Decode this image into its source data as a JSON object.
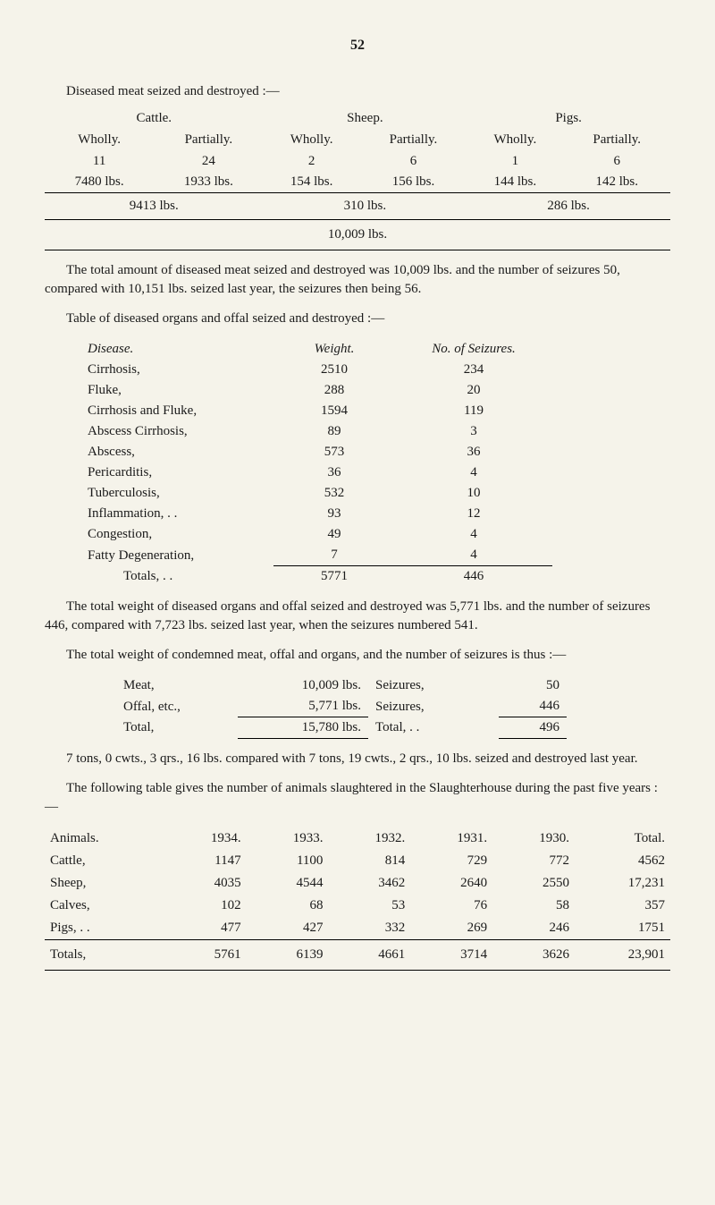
{
  "page_number": "52",
  "meat_section": {
    "intro": "Diseased meat seized and destroyed :—",
    "categories": [
      "Cattle.",
      "Sheep.",
      "Pigs."
    ],
    "headers": [
      "Wholly.",
      "Partially.",
      "Wholly.",
      "Partially.",
      "Wholly.",
      "Partially."
    ],
    "counts": [
      "11",
      "24",
      "2",
      "6",
      "1",
      "6"
    ],
    "weights": [
      "7480 lbs.",
      "1933 lbs.",
      "154 lbs.",
      "156 lbs.",
      "144 lbs.",
      "142 lbs."
    ],
    "subtotals": [
      "9413 lbs.",
      "310 lbs.",
      "286 lbs."
    ],
    "grand_total": "10,009 lbs."
  },
  "para1": "The total amount of diseased meat seized and destroyed was 10,009 lbs. and the number of seizures 50, compared with 10,151 lbs. seized last year, the seizures then being 56.",
  "organs_section": {
    "intro": "Table of diseased organs and offal seized and destroyed :—",
    "headers": {
      "disease": "Disease.",
      "weight": "Weight.",
      "seizures": "No. of Seizures."
    },
    "rows": [
      {
        "disease": "Cirrhosis,",
        "weight": "2510",
        "seizures": "234"
      },
      {
        "disease": "Fluke,",
        "weight": "288",
        "seizures": "20"
      },
      {
        "disease": "Cirrhosis and Fluke,",
        "weight": "1594",
        "seizures": "119"
      },
      {
        "disease": "Abscess Cirrhosis,",
        "weight": "89",
        "seizures": "3"
      },
      {
        "disease": "Abscess,",
        "weight": "573",
        "seizures": "36"
      },
      {
        "disease": "Pericarditis,",
        "weight": "36",
        "seizures": "4"
      },
      {
        "disease": "Tuberculosis,",
        "weight": "532",
        "seizures": "10"
      },
      {
        "disease": "Inflammation, . .",
        "weight": "93",
        "seizures": "12"
      },
      {
        "disease": "Congestion,",
        "weight": "49",
        "seizures": "4"
      },
      {
        "disease": "Fatty Degeneration,",
        "weight": "7",
        "seizures": "4"
      }
    ],
    "totals": {
      "label": "Totals, . .",
      "weight": "5771",
      "seizures": "446"
    }
  },
  "para2": "The total weight of diseased organs and offal seized and destroyed was 5,771 lbs. and the number of seizures 446, compared with 7,723 lbs. seized last year, when the seizures numbered 541.",
  "condemned_section": {
    "intro": "The total weight of condemned meat, offal and organs, and the number of seizures is thus :—",
    "rows": [
      {
        "label": "Meat,",
        "lbs": "10,009 lbs.",
        "seiz_label": "Seizures,",
        "seiz_val": "50"
      },
      {
        "label": "Offal, etc.,",
        "lbs": "5,771 lbs.",
        "seiz_label": "Seizures,",
        "seiz_val": "446"
      }
    ],
    "total": {
      "label": "Total,",
      "lbs": "15,780 lbs.",
      "seiz_label": "Total, . .",
      "seiz_val": "496"
    }
  },
  "para3": "7 tons, 0 cwts., 3 qrs., 16 lbs. compared with 7 tons, 19 cwts., 2 qrs., 10 lbs. seized and destroyed last year.",
  "slaughter_section": {
    "intro": "The following table gives the number of animals slaughtered in the Slaughterhouse during the past five years :—",
    "headers": [
      "Animals.",
      "1934.",
      "1933.",
      "1932.",
      "1931.",
      "1930.",
      "Total."
    ],
    "rows": [
      {
        "label": "Cattle,",
        "vals": [
          "1147",
          "1100",
          "814",
          "729",
          "772",
          "4562"
        ]
      },
      {
        "label": "Sheep,",
        "vals": [
          "4035",
          "4544",
          "3462",
          "2640",
          "2550",
          "17,231"
        ]
      },
      {
        "label": "Calves,",
        "vals": [
          "102",
          "68",
          "53",
          "76",
          "58",
          "357"
        ]
      },
      {
        "label": "Pigs, . .",
        "vals": [
          "477",
          "427",
          "332",
          "269",
          "246",
          "1751"
        ]
      }
    ],
    "totals": {
      "label": "Totals,",
      "vals": [
        "5761",
        "6139",
        "4661",
        "3714",
        "3626",
        "23,901"
      ]
    }
  }
}
